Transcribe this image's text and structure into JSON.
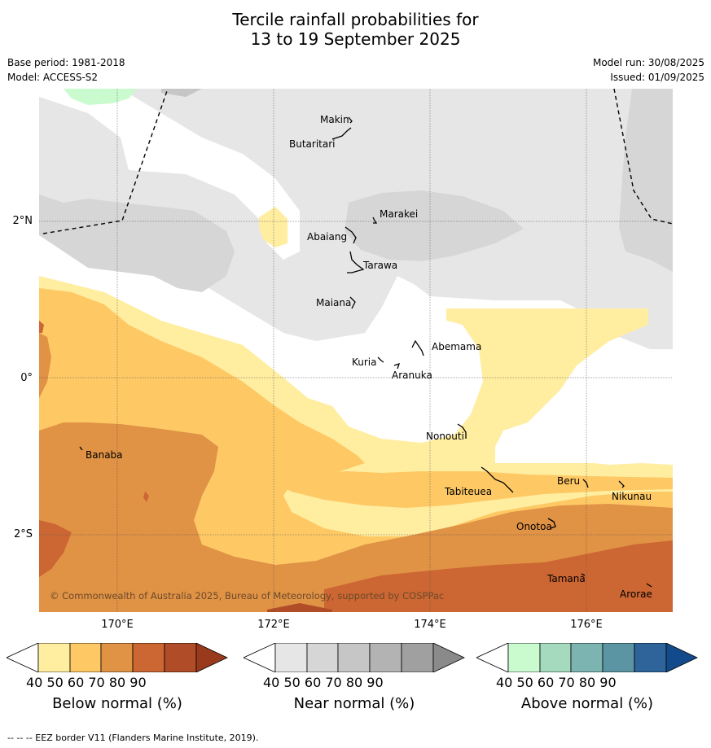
{
  "title": {
    "line1": "Tercile rainfall probabilities for",
    "line2": "13 to 19 September 2025"
  },
  "meta": {
    "base_period": "Base period: 1981-2018",
    "model": "Model: ACCESS-S2",
    "model_run": "Model run: 30/08/2025",
    "issued": "Issued: 01/09/2025"
  },
  "map": {
    "lat_labels": [
      "2°N",
      "0°",
      "2°S"
    ],
    "lon_labels": [
      "170°E",
      "172°E",
      "174°E",
      "176°E"
    ],
    "copyright": "© Commonwealth of Australia 2025, Bureau of Meteorology, supported by COSPPac",
    "islands": [
      "Makin",
      "Butaritari",
      "Marakei",
      "Abaiang",
      "Tarawa",
      "Maiana",
      "Abemama",
      "Kuria",
      "Aranuka",
      "Nonouti",
      "Banaba",
      "Tabiteuea",
      "Beru",
      "Nikunau",
      "Onotoa",
      "Tamana",
      "Arorae"
    ]
  },
  "colorbars": [
    {
      "label": "Below normal (%)",
      "ticks": [
        "40",
        "50",
        "60",
        "70",
        "80",
        "90"
      ],
      "colors": [
        "#ffffff",
        "#ffeda0",
        "#fec965",
        "#e09245",
        "#cc6633",
        "#b04d28",
        "#9a3a1c"
      ]
    },
    {
      "label": "Near normal (%)",
      "ticks": [
        "40",
        "50",
        "60",
        "70",
        "80",
        "90"
      ],
      "colors": [
        "#ffffff",
        "#e6e6e6",
        "#d6d6d6",
        "#c6c6c6",
        "#b3b3b3",
        "#a0a0a0",
        "#8a8a8a"
      ]
    },
    {
      "label": "Above normal (%)",
      "ticks": [
        "40",
        "50",
        "60",
        "70",
        "80",
        "90"
      ],
      "colors": [
        "#ffffff",
        "#c9fbcf",
        "#a6dabf",
        "#7bb4b0",
        "#5b95a3",
        "#2f649b",
        "#134a8c"
      ]
    }
  ],
  "footnote": "--  --  -- EEZ border V11 (Flanders Marine Institute, 2019)."
}
